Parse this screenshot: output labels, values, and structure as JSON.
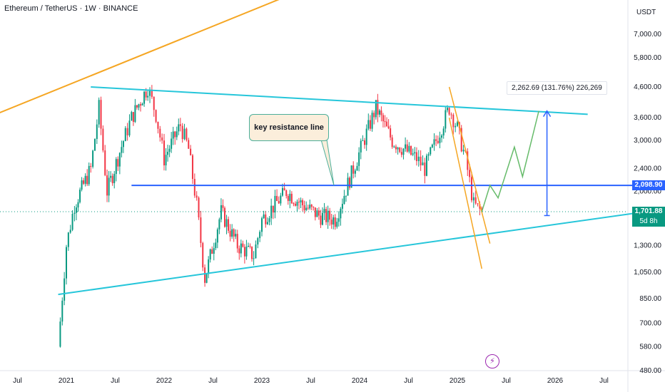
{
  "header": {
    "title": "Ethereum / TetherUS · 1W · BINANCE",
    "currency": "USDT"
  },
  "badges": {
    "resistance_price": "2,098.90",
    "last_price": "1,701.88",
    "countdown": "5d 8h"
  },
  "annotations": {
    "measure": "2,262.69 (131.76%) 226,269",
    "callout": "key resistance line",
    "flash_icon": "lightning-icon"
  },
  "colors": {
    "up": "#089981",
    "down": "#f23645",
    "cyan_lines": "#26c6da",
    "orange_lines": "#f5a623",
    "blue_line": "#2962ff",
    "projection": "#66bb6a"
  },
  "chart_data": {
    "type": "candlestick",
    "title": "Ethereum / TetherUS · 1W · BINANCE",
    "y_axis": {
      "scale": "log",
      "unit": "USDT",
      "ticks": [
        "7,000.00",
        "5,800.00",
        "4,600.00",
        "3,600.00",
        "3,000.00",
        "2,400.00",
        "2,000.00",
        "1,300.00",
        "1,050.00",
        "850.00",
        "700.00",
        "580.00",
        "480.00"
      ]
    },
    "x_axis": {
      "ticks": [
        "Jul",
        "2021",
        "Jul",
        "2022",
        "Jul",
        "2023",
        "Jul",
        "2024",
        "Jul",
        "2025",
        "Jul",
        "2026",
        "Jul"
      ]
    },
    "key_levels": {
      "resistance": 2098.9,
      "last": 1701.88
    },
    "price_path": [
      [
        "2020-12",
        580
      ],
      [
        "2021-01",
        1300
      ],
      [
        "2021-02",
        1800
      ],
      [
        "2021-04",
        2400
      ],
      [
        "2021-05",
        3900
      ],
      [
        "2021-06",
        2000
      ],
      [
        "2021-08",
        3000
      ],
      [
        "2021-09",
        3600
      ],
      [
        "2021-11",
        4600
      ],
      [
        "2021-12",
        3700
      ],
      [
        "2022-01",
        2600
      ],
      [
        "2022-03",
        3400
      ],
      [
        "2022-04",
        2800
      ],
      [
        "2022-05",
        1800
      ],
      [
        "2022-06",
        1000
      ],
      [
        "2022-08",
        1700
      ],
      [
        "2022-10",
        1300
      ],
      [
        "2022-12",
        1200
      ],
      [
        "2023-01",
        1600
      ],
      [
        "2023-04",
        2000
      ],
      [
        "2023-06",
        1800
      ],
      [
        "2023-08",
        1650
      ],
      [
        "2023-10",
        1600
      ],
      [
        "2023-12",
        2300
      ],
      [
        "2024-03",
        3900
      ],
      [
        "2024-05",
        3000
      ],
      [
        "2024-08",
        2600
      ],
      [
        "2024-09",
        2400
      ],
      [
        "2024-12",
        3900
      ],
      [
        "2025-01",
        3300
      ],
      [
        "2025-02",
        2600
      ],
      [
        "2025-03",
        1800
      ],
      [
        "2025-04",
        1700
      ]
    ],
    "projection_path": [
      [
        "2025-05",
        2100
      ],
      [
        "2025-06",
        1900
      ],
      [
        "2025-08",
        2850
      ],
      [
        "2025-09",
        2250
      ],
      [
        "2025-11",
        3800
      ]
    ]
  }
}
